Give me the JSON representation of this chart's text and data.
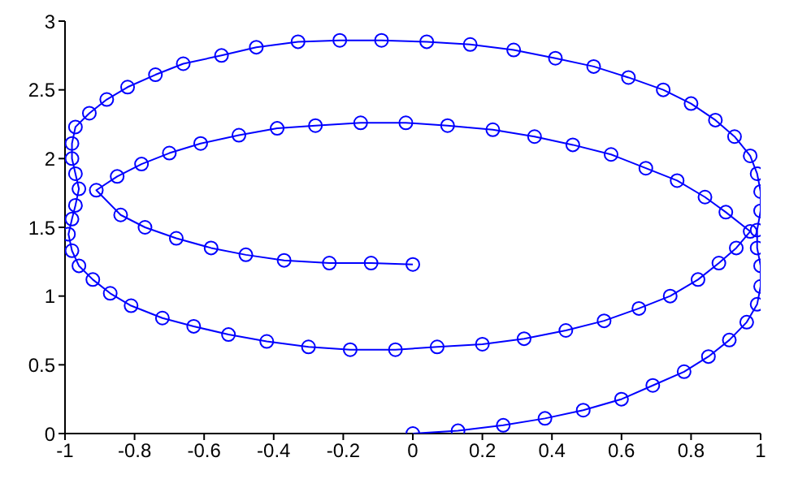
{
  "chart_data": {
    "type": "line",
    "marker": "circle",
    "line_style": "solid",
    "grid": false,
    "legend": false,
    "xlim": [
      -1,
      1
    ],
    "xticks": [
      -1,
      -0.8,
      -0.6,
      -0.4,
      -0.2,
      0,
      0.2,
      0.4,
      0.6,
      0.8,
      1
    ],
    "ylim": [
      0,
      3
    ],
    "yticks": [
      0,
      0.5,
      1,
      1.5,
      2,
      2.5,
      3
    ],
    "series": [
      {
        "color": "#0000ff",
        "x": [
          0,
          0.13,
          0.26,
          0.38,
          0.49,
          0.6,
          0.69,
          0.78,
          0.85,
          0.91,
          0.96,
          0.99,
          1,
          1,
          0.99,
          0.99,
          1,
          1,
          0.99,
          0.97,
          0.925,
          0.87,
          0.8,
          0.72,
          0.62,
          0.52,
          0.41,
          0.29,
          0.165,
          0.04,
          -0.09,
          -0.21,
          -0.33,
          -0.45,
          -0.55,
          -0.66,
          -0.74,
          -0.82,
          -0.88,
          -0.93,
          -0.97,
          -0.98,
          -0.98,
          -0.97,
          -0.96,
          -0.97,
          -0.98,
          -0.99,
          -0.98,
          -0.96,
          -0.92,
          -0.87,
          -0.81,
          -0.72,
          -0.63,
          -0.53,
          -0.42,
          -0.3,
          -0.18,
          -0.05,
          0.07,
          0.2,
          0.32,
          0.44,
          0.55,
          0.65,
          0.74,
          0.82,
          0.88,
          0.93,
          0.97,
          0.9,
          0.84,
          0.76,
          0.67,
          0.57,
          0.46,
          0.35,
          0.23,
          0.1,
          -0.02,
          -0.15,
          -0.28,
          -0.39,
          -0.5,
          -0.61,
          -0.7,
          -0.78,
          -0.85,
          -0.91,
          -0.84,
          -0.77,
          -0.68,
          -0.58,
          -0.48,
          -0.37,
          -0.24,
          -0.12,
          0
        ],
        "values": [
          0,
          0.02,
          0.06,
          0.11,
          0.17,
          0.25,
          0.35,
          0.45,
          0.56,
          0.68,
          0.81,
          0.94,
          1.07,
          1.22,
          1.35,
          1.48,
          1.62,
          1.76,
          1.89,
          2.02,
          2.16,
          2.28,
          2.4,
          2.5,
          2.59,
          2.67,
          2.73,
          2.79,
          2.83,
          2.85,
          2.86,
          2.86,
          2.85,
          2.81,
          2.75,
          2.69,
          2.61,
          2.52,
          2.43,
          2.33,
          2.23,
          2.11,
          2,
          1.89,
          1.78,
          1.66,
          1.56,
          1.45,
          1.33,
          1.22,
          1.12,
          1.02,
          0.93,
          0.84,
          0.78,
          0.72,
          0.67,
          0.63,
          0.61,
          0.61,
          0.63,
          0.65,
          0.69,
          0.75,
          0.82,
          0.91,
          1,
          1.12,
          1.24,
          1.35,
          1.47,
          1.61,
          1.72,
          1.84,
          1.93,
          2.03,
          2.1,
          2.16,
          2.21,
          2.24,
          2.26,
          2.26,
          2.24,
          2.22,
          2.17,
          2.11,
          2.04,
          1.96,
          1.87,
          1.77,
          1.59,
          1.5,
          1.42,
          1.35,
          1.3,
          1.26,
          1.24,
          1.24,
          1.23
        ]
      }
    ]
  }
}
